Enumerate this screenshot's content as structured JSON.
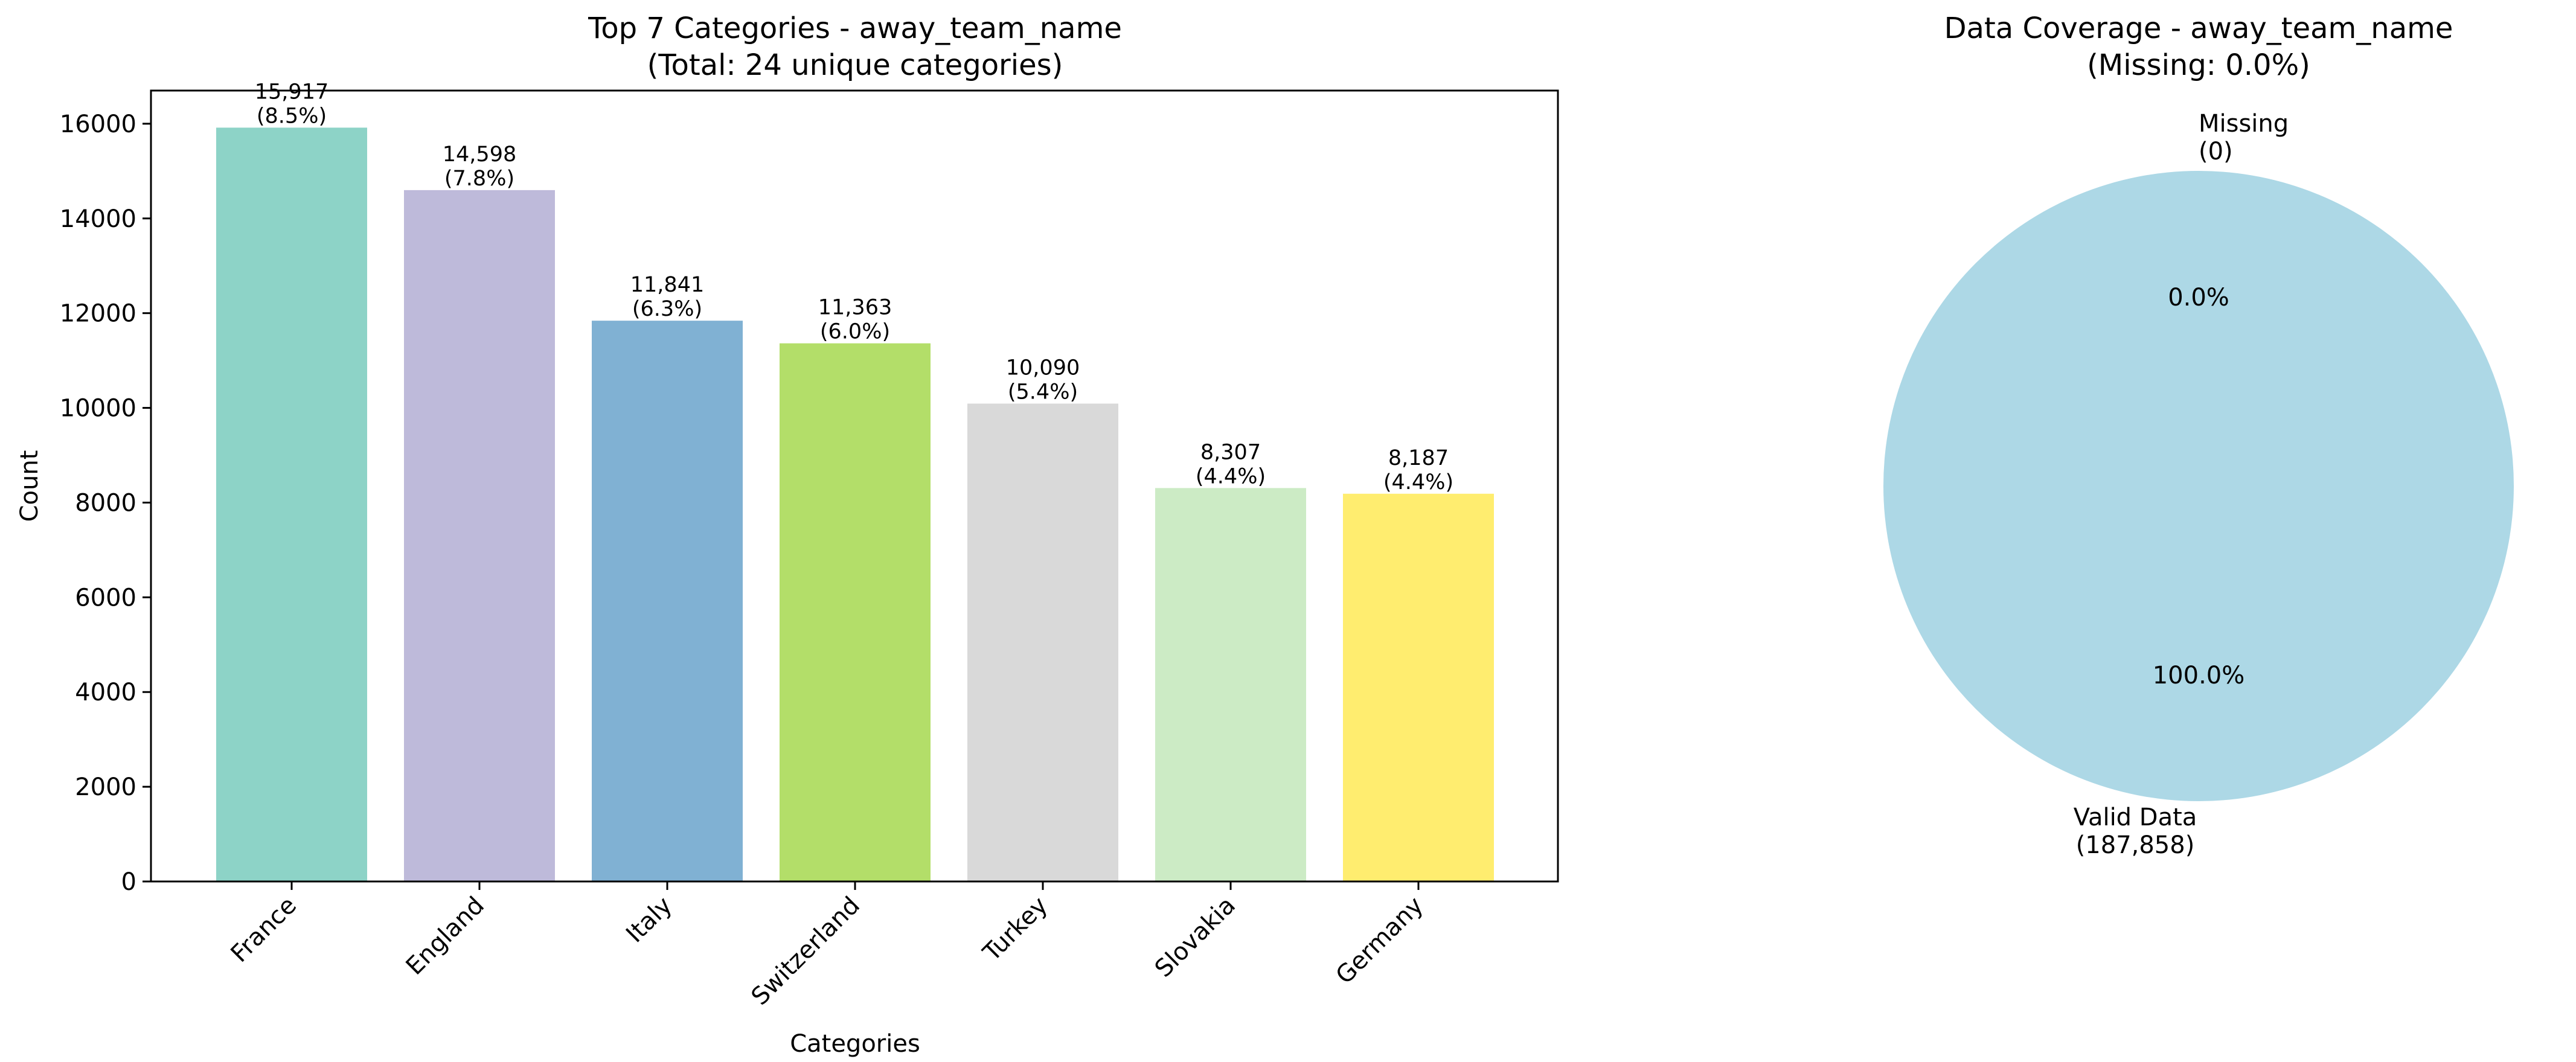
{
  "chart_data": [
    {
      "type": "bar",
      "title_line1": "Top 7 Categories - away_team_name",
      "title_line2": "(Total: 24 unique categories)",
      "xlabel": "Categories",
      "ylabel": "Count",
      "categories": [
        "France",
        "England",
        "Italy",
        "Switzerland",
        "Turkey",
        "Slovakia",
        "Germany"
      ],
      "values": [
        15917,
        14598,
        11841,
        11363,
        10090,
        8307,
        8187
      ],
      "value_labels": [
        "15,917",
        "14,598",
        "11,841",
        "11,363",
        "10,090",
        "8,307",
        "8,187"
      ],
      "percent_labels": [
        "(8.5%)",
        "(7.8%)",
        "(6.3%)",
        "(6.0%)",
        "(5.4%)",
        "(4.4%)",
        "(4.4%)"
      ],
      "colors": [
        "#8dd3c7",
        "#bebada",
        "#80b1d3",
        "#b3de69",
        "#d9d9d9",
        "#ccebc5",
        "#ffed6f"
      ],
      "yticks": [
        0,
        2000,
        4000,
        6000,
        8000,
        10000,
        12000,
        14000,
        16000
      ],
      "ylim": [
        0,
        16700
      ],
      "grid": false,
      "legend": "none"
    },
    {
      "type": "pie",
      "title_line1": "Data Coverage - away_team_name",
      "title_line2": "(Missing: 0.0%)",
      "slices": [
        {
          "name": "Valid Data",
          "label_line1": "Valid Data",
          "label_line2": "(187,858)",
          "value": 187858,
          "pct_label": "100.0%",
          "color": "#add8e6"
        },
        {
          "name": "Missing",
          "label_line1": "Missing",
          "label_line2": "(0)",
          "value": 0,
          "pct_label": "0.0%",
          "color": "#f08080"
        }
      ]
    }
  ]
}
